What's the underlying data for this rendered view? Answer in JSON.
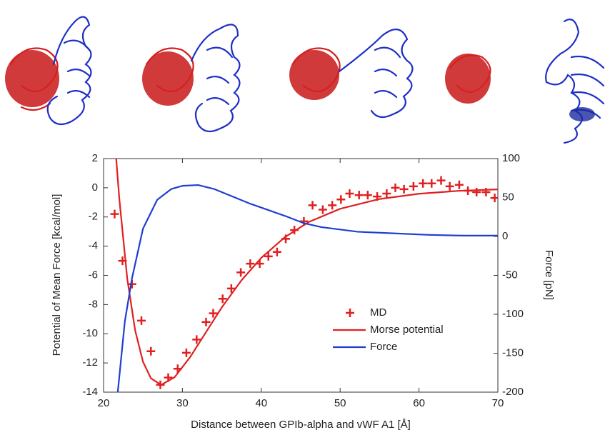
{
  "chart_data": {
    "type": "line",
    "xlabel": "Distance between GPIb-alpha and vWF A1 [Å]",
    "ylabel": "Potential of Mean Force [kcal/mol]",
    "y2label": "Force [pN]",
    "xlim": [
      20,
      70
    ],
    "xticks": [
      20,
      30,
      40,
      50,
      60,
      70
    ],
    "ylim": [
      -14,
      2
    ],
    "yticks": [
      -14,
      -12,
      -10,
      -8,
      -6,
      -4,
      -2,
      0,
      2
    ],
    "y2lim": [
      -200,
      100
    ],
    "y2ticks": [
      -200,
      -150,
      -100,
      -50,
      0,
      50,
      100
    ],
    "legend": "center-right",
    "series": [
      {
        "name": "MD",
        "type": "scatter",
        "color": "#e02020",
        "x": [
          21.4,
          22.4,
          23.6,
          24.8,
          26.0,
          27.2,
          28.2,
          29.4,
          30.5,
          31.8,
          33.0,
          33.9,
          35.1,
          36.2,
          37.4,
          38.6,
          39.8,
          40.9,
          42.0,
          43.1,
          44.2,
          45.4,
          46.5,
          47.8,
          49.0,
          50.1,
          51.2,
          52.4,
          53.5,
          54.7,
          55.9,
          57.0,
          58.1,
          59.3,
          60.5,
          61.6,
          62.8,
          63.9,
          65.1,
          66.2,
          67.3,
          68.5,
          69.6
        ],
        "values": [
          -1.8,
          -5.0,
          -6.6,
          -9.1,
          -11.2,
          -13.5,
          -13.0,
          -12.4,
          -11.3,
          -10.4,
          -9.2,
          -8.6,
          -7.6,
          -6.9,
          -5.8,
          -5.2,
          -5.2,
          -4.7,
          -4.4,
          -3.5,
          -2.9,
          -2.3,
          -1.2,
          -1.5,
          -1.2,
          -0.8,
          -0.4,
          -0.5,
          -0.5,
          -0.6,
          -0.4,
          0.0,
          -0.1,
          0.1,
          0.3,
          0.3,
          0.5,
          0.1,
          0.2,
          -0.2,
          -0.3,
          -0.3,
          -0.7
        ]
      },
      {
        "name": "Morse potential",
        "type": "line",
        "color": "#e02020",
        "x": [
          21.6,
          22,
          23,
          24,
          25,
          26,
          27.3,
          29,
          31,
          33,
          35,
          37.5,
          40,
          43,
          46,
          50,
          55,
          60,
          65,
          70
        ],
        "values": [
          2.0,
          -0.77,
          -6.22,
          -9.76,
          -11.92,
          -13.05,
          -13.5,
          -12.98,
          -11.58,
          -9.88,
          -8.19,
          -6.33,
          -4.8,
          -3.38,
          -2.35,
          -1.44,
          -0.77,
          -0.41,
          -0.21,
          -0.11
        ]
      },
      {
        "name": "Force",
        "type": "line",
        "color": "#1f3fd0",
        "axis": "y2",
        "x": [
          21.8,
          22.7,
          23.6,
          25.0,
          26.8,
          28.6,
          30.0,
          32.0,
          34.0,
          38.6,
          43.1,
          45.4,
          47.6,
          52.2,
          56.7,
          61.2,
          65.7,
          70
        ],
        "values": [
          -200,
          -109,
          -54,
          10,
          47,
          61,
          65,
          66,
          61,
          42,
          26,
          17,
          12,
          6,
          4,
          2,
          1,
          1
        ]
      }
    ]
  }
}
